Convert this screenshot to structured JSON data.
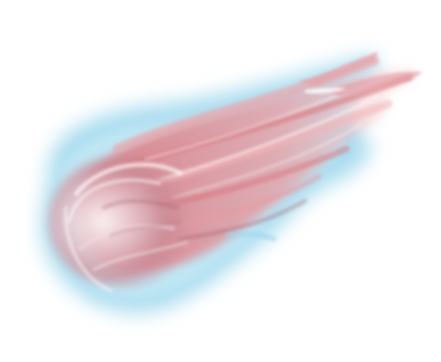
{
  "image": {
    "subject": "comet-fireball-illustration",
    "palette": {
      "background": "#ffffff",
      "outer_glow": "#8fd0ea",
      "outer_glow_light": "#c9ebf7",
      "core_red": "#d9737c",
      "core_pink": "#f2b4b7",
      "core_dark": "#9d5a66",
      "highlight": "#ffffff"
    }
  }
}
